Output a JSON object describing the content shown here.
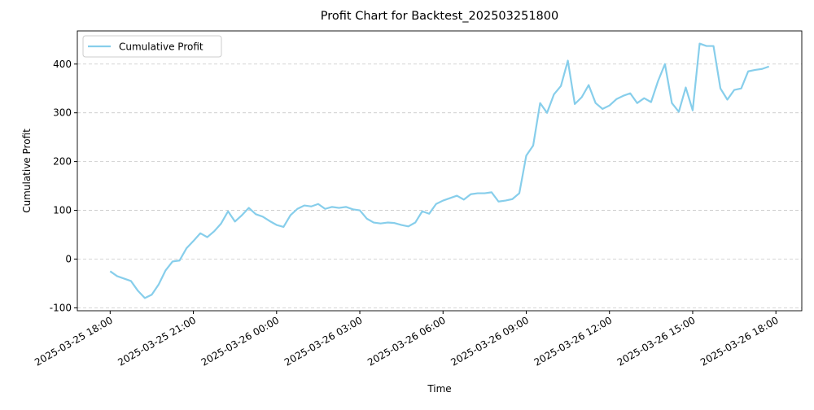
{
  "chart_data": {
    "type": "line",
    "title": "Profit Chart for Backtest_202503251800",
    "xlabel": "Time",
    "ylabel": "Cumulative Profit",
    "x": [
      "2025-03-25 18:00",
      "2025-03-25 18:15",
      "2025-03-25 18:30",
      "2025-03-25 18:45",
      "2025-03-25 19:00",
      "2025-03-25 19:15",
      "2025-03-25 19:30",
      "2025-03-25 19:45",
      "2025-03-25 20:00",
      "2025-03-25 20:15",
      "2025-03-25 20:30",
      "2025-03-25 20:45",
      "2025-03-25 21:00",
      "2025-03-25 21:15",
      "2025-03-25 21:30",
      "2025-03-25 21:45",
      "2025-03-25 22:00",
      "2025-03-25 22:15",
      "2025-03-25 22:30",
      "2025-03-25 22:45",
      "2025-03-25 23:00",
      "2025-03-25 23:15",
      "2025-03-25 23:30",
      "2025-03-25 23:45",
      "2025-03-26 00:00",
      "2025-03-26 00:15",
      "2025-03-26 00:30",
      "2025-03-26 00:45",
      "2025-03-26 01:00",
      "2025-03-26 01:15",
      "2025-03-26 01:30",
      "2025-03-26 01:45",
      "2025-03-26 02:00",
      "2025-03-26 02:15",
      "2025-03-26 02:30",
      "2025-03-26 02:45",
      "2025-03-26 03:00",
      "2025-03-26 03:15",
      "2025-03-26 03:30",
      "2025-03-26 03:45",
      "2025-03-26 04:00",
      "2025-03-26 04:15",
      "2025-03-26 04:30",
      "2025-03-26 04:45",
      "2025-03-26 05:00",
      "2025-03-26 05:15",
      "2025-03-26 05:30",
      "2025-03-26 05:45",
      "2025-03-26 06:00",
      "2025-03-26 06:15",
      "2025-03-26 06:30",
      "2025-03-26 06:45",
      "2025-03-26 07:00",
      "2025-03-26 07:15",
      "2025-03-26 07:30",
      "2025-03-26 07:45",
      "2025-03-26 08:00",
      "2025-03-26 08:15",
      "2025-03-26 08:30",
      "2025-03-26 08:45",
      "2025-03-26 09:00",
      "2025-03-26 09:15",
      "2025-03-26 09:30",
      "2025-03-26 09:45",
      "2025-03-26 10:00",
      "2025-03-26 10:15",
      "2025-03-26 10:30",
      "2025-03-26 10:45",
      "2025-03-26 11:00",
      "2025-03-26 11:15",
      "2025-03-26 11:30",
      "2025-03-26 11:45",
      "2025-03-26 12:00",
      "2025-03-26 12:15",
      "2025-03-26 12:30",
      "2025-03-26 12:45",
      "2025-03-26 13:00",
      "2025-03-26 13:15",
      "2025-03-26 13:30",
      "2025-03-26 13:45",
      "2025-03-26 14:00",
      "2025-03-26 14:15",
      "2025-03-26 14:30",
      "2025-03-26 14:45",
      "2025-03-26 15:00",
      "2025-03-26 15:15",
      "2025-03-26 15:30",
      "2025-03-26 15:45",
      "2025-03-26 16:00",
      "2025-03-26 16:15",
      "2025-03-26 16:30",
      "2025-03-26 16:45",
      "2025-03-26 17:00",
      "2025-03-26 17:15",
      "2025-03-26 17:30",
      "2025-03-26 17:45"
    ],
    "series": [
      {
        "name": "Cumulative Profit",
        "color": "#87ceeb",
        "values": [
          -25,
          -35,
          -40,
          -45,
          -65,
          -80,
          -73,
          -52,
          -23,
          -5,
          -3,
          22,
          37,
          53,
          45,
          57,
          73,
          98,
          77,
          90,
          105,
          92,
          87,
          78,
          70,
          66,
          90,
          103,
          110,
          108,
          113,
          103,
          107,
          105,
          107,
          102,
          100,
          83,
          75,
          73,
          75,
          74,
          70,
          67,
          75,
          98,
          93,
          113,
          120,
          125,
          130,
          122,
          133,
          135,
          135,
          137,
          118,
          120,
          123,
          135,
          212,
          233,
          320,
          300,
          338,
          355,
          407,
          318,
          332,
          357,
          320,
          308,
          315,
          328,
          335,
          340,
          320,
          330,
          322,
          365,
          400,
          320,
          302,
          352,
          305,
          442,
          437,
          437,
          350,
          327,
          347,
          350,
          385,
          388,
          390,
          395
        ]
      }
    ],
    "xlim": [
      "2025-03-25 16:49",
      "2025-03-26 18:56"
    ],
    "xticks": [
      "2025-03-25 18:00",
      "2025-03-25 21:00",
      "2025-03-26 00:00",
      "2025-03-26 03:00",
      "2025-03-26 06:00",
      "2025-03-26 09:00",
      "2025-03-26 12:00",
      "2025-03-26 15:00",
      "2025-03-26 18:00"
    ],
    "ylim": [
      -106,
      468
    ],
    "yticks": [
      -100,
      0,
      100,
      200,
      300,
      400
    ],
    "grid": true,
    "legend": "upper left"
  }
}
